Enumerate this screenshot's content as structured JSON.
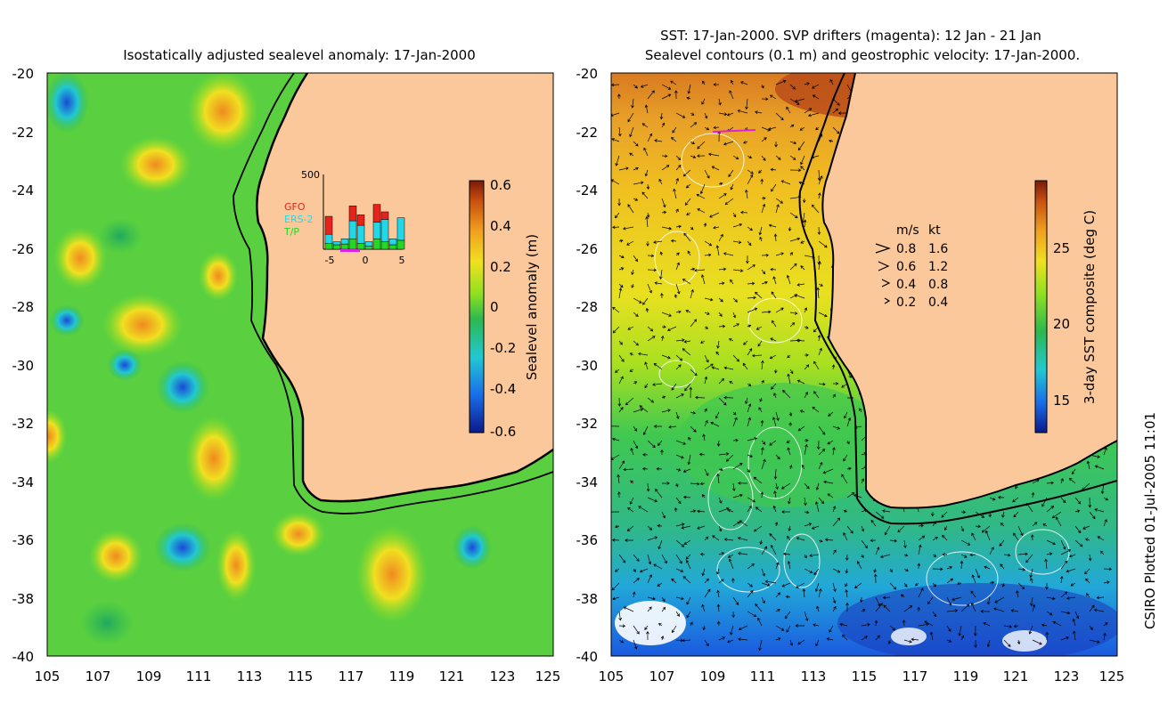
{
  "left_panel": {
    "title": "Isostatically adjusted sealevel anomaly: 17-Jan-2000",
    "colorbar": {
      "label": "Sealevel anomaly (m)",
      "ticks": [
        "0.6",
        "0.4",
        "0.2",
        "0",
        "-0.2",
        "-0.4",
        "-0.6"
      ],
      "range": [
        -0.6,
        0.6
      ]
    },
    "inset": {
      "ymax_label": "500",
      "legend": [
        {
          "name": "GFO",
          "color": "#e8231c"
        },
        {
          "name": "ERS-2",
          "color": "#22d8e8"
        },
        {
          "name": "T/P",
          "color": "#22d822"
        }
      ],
      "xticks": [
        "-5",
        "0",
        "5"
      ],
      "bars": [
        {
          "day": -5,
          "tp": 40,
          "ers": 60,
          "gfo": 120
        },
        {
          "day": -4,
          "tp": 30,
          "ers": 20,
          "gfo": 0
        },
        {
          "day": -3,
          "tp": 35,
          "ers": 35,
          "gfo": 0
        },
        {
          "day": -2,
          "tp": 70,
          "ers": 120,
          "gfo": 100
        },
        {
          "day": -1,
          "tp": 40,
          "ers": 120,
          "gfo": 70
        },
        {
          "day": 0,
          "tp": 20,
          "ers": 30,
          "gfo": 0
        },
        {
          "day": 1,
          "tp": 70,
          "ers": 110,
          "gfo": 120
        },
        {
          "day": 2,
          "tp": 50,
          "ers": 150,
          "gfo": 50
        },
        {
          "day": 3,
          "tp": 30,
          "ers": 40,
          "gfo": 0
        },
        {
          "day": 4,
          "tp": 60,
          "ers": 150,
          "gfo": 0
        }
      ]
    }
  },
  "right_panel": {
    "title_line1": "SST: 17-Jan-2000. SVP drifters (magenta): 12 Jan - 21 Jan",
    "title_line2": "Sealevel contours (0.1 m) and geostrophic velocity: 17-Jan-2000.",
    "colorbar": {
      "label": "3-day SST composite (deg C)",
      "ticks": [
        "25",
        "20",
        "15"
      ],
      "range": [
        13,
        29
      ]
    },
    "velocity_legend": {
      "header_ms": "m/s",
      "header_kt": "kt",
      "rows": [
        {
          "ms": "0.8",
          "kt": "1.6"
        },
        {
          "ms": "0.6",
          "kt": "1.2"
        },
        {
          "ms": "0.4",
          "kt": "0.8"
        },
        {
          "ms": "0.2",
          "kt": "0.4"
        }
      ]
    }
  },
  "axes": {
    "lat_ticks": [
      "-20",
      "-22",
      "-24",
      "-26",
      "-28",
      "-30",
      "-32",
      "-34",
      "-36",
      "-38",
      "-40"
    ],
    "lon_ticks": [
      "105",
      "107",
      "109",
      "111",
      "113",
      "115",
      "117",
      "119",
      "121",
      "123",
      "125"
    ]
  },
  "footer": {
    "credit": "CSIRO Plotted 01-Jul-2005 11:01"
  },
  "colors": {
    "land": "#fac89a",
    "ocean_green": "#3cc83c",
    "coast": "#000000"
  }
}
